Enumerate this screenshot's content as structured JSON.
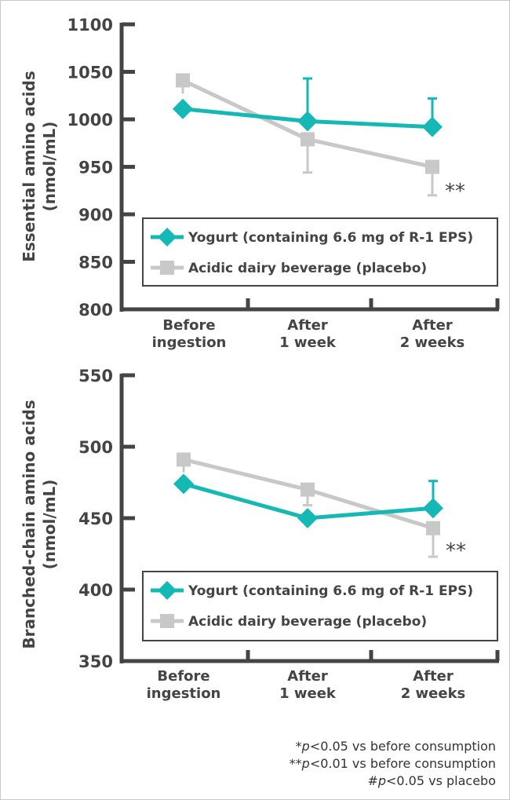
{
  "colors": {
    "yogurt": "#14b8b4",
    "placebo": "#c8c8c8",
    "axis": "#444444"
  },
  "chart_data": [
    {
      "type": "line",
      "title": "",
      "ylabel": "Essential amino acids",
      "yunit": "(nmol/mL)",
      "ylim": [
        800,
        1100
      ],
      "yticks": [
        "800",
        "850",
        "900",
        "950",
        "1000",
        "1050",
        "1100"
      ],
      "categories": [
        [
          "Before",
          "ingestion"
        ],
        [
          "After",
          "1 week"
        ],
        [
          "After",
          "2 weeks"
        ]
      ],
      "series": [
        {
          "name": "Yogurt (containing 6.6 mg of R-1 EPS)",
          "marker": "diamond",
          "values": [
            1011,
            998,
            992
          ],
          "error_upper": [
            null,
            1043,
            1022
          ],
          "error_lower": [
            null,
            null,
            null
          ]
        },
        {
          "name": "Acidic dairy beverage (placebo)",
          "marker": "square",
          "values": [
            1041,
            979,
            950
          ],
          "error_upper": [
            null,
            null,
            null
          ],
          "error_lower": [
            1027,
            944,
            920
          ]
        }
      ],
      "annotations": [
        {
          "category_index": 2,
          "text": "**"
        }
      ],
      "legend": "bottom-inside"
    },
    {
      "type": "line",
      "title": "",
      "ylabel": "Branched-chain amino acids",
      "yunit": "(nmol/mL)",
      "ylim": [
        350,
        550
      ],
      "yticks": [
        "350",
        "400",
        "450",
        "500",
        "550"
      ],
      "categories": [
        [
          "Before",
          "ingestion"
        ],
        [
          "After",
          "1 week"
        ],
        [
          "After",
          "2 weeks"
        ]
      ],
      "series": [
        {
          "name": "Yogurt (containing 6.6 mg of R-1 EPS)",
          "marker": "diamond",
          "values": [
            474,
            450,
            457
          ],
          "error_upper": [
            null,
            null,
            476
          ],
          "error_lower": [
            null,
            null,
            null
          ]
        },
        {
          "name": "Acidic dairy beverage (placebo)",
          "marker": "square",
          "values": [
            491,
            470,
            443
          ],
          "error_upper": [
            null,
            null,
            null
          ],
          "error_lower": [
            482,
            459,
            423
          ]
        }
      ],
      "annotations": [
        {
          "category_index": 2,
          "text": "**"
        }
      ],
      "legend": "bottom-inside"
    }
  ],
  "footnotes": [
    {
      "prefix": "*",
      "p": "p",
      "text": "<0.05 vs before consumption"
    },
    {
      "prefix": "**",
      "p": "p",
      "text": "<0.01 vs before consumption"
    },
    {
      "prefix": "#",
      "p": "p",
      "text": "<0.05 vs placebo"
    }
  ]
}
